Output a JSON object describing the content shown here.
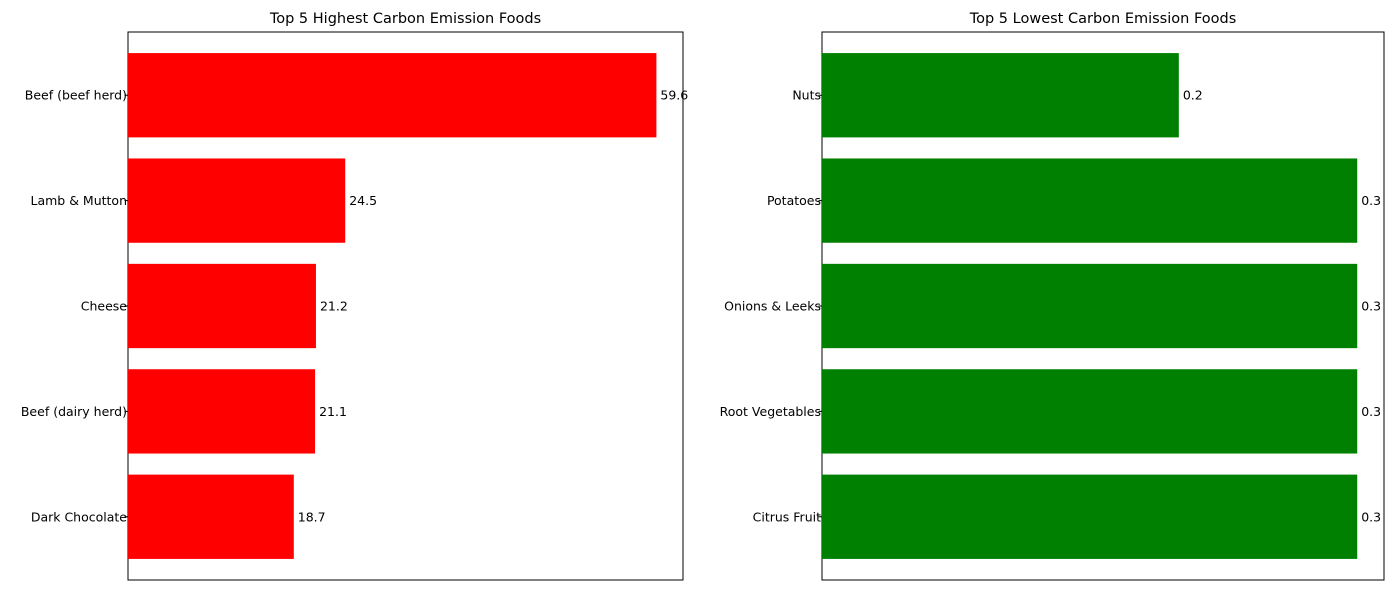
{
  "chart_data": [
    {
      "type": "bar",
      "orientation": "horizontal",
      "title": "Top 5 Highest Carbon Emission Foods",
      "categories": [
        "Beef (beef herd)",
        "Lamb & Mutton",
        "Cheese",
        "Beef (dairy herd)",
        "Dark Chocolate"
      ],
      "values": [
        59.6,
        24.5,
        21.2,
        21.1,
        18.7
      ],
      "value_labels": [
        "59.6",
        "24.5",
        "21.2",
        "21.1",
        "18.7"
      ],
      "color": "#ff0000",
      "xlim": [
        0,
        62.6
      ],
      "xticks": "hidden",
      "grid": false,
      "xlabel": "",
      "ylabel": ""
    },
    {
      "type": "bar",
      "orientation": "horizontal",
      "title": "Top 5 Lowest Carbon Emission Foods",
      "categories": [
        "Nuts",
        "Potatoes",
        "Onions & Leeks",
        "Root Vegetables",
        "Citrus Fruit"
      ],
      "values": [
        0.2,
        0.3,
        0.3,
        0.3,
        0.3
      ],
      "value_labels": [
        "0.2",
        "0.3",
        "0.3",
        "0.3",
        "0.3"
      ],
      "color": "#008000",
      "xlim": [
        0,
        0.315
      ],
      "xticks": "hidden",
      "grid": false,
      "xlabel": "",
      "ylabel": ""
    }
  ]
}
